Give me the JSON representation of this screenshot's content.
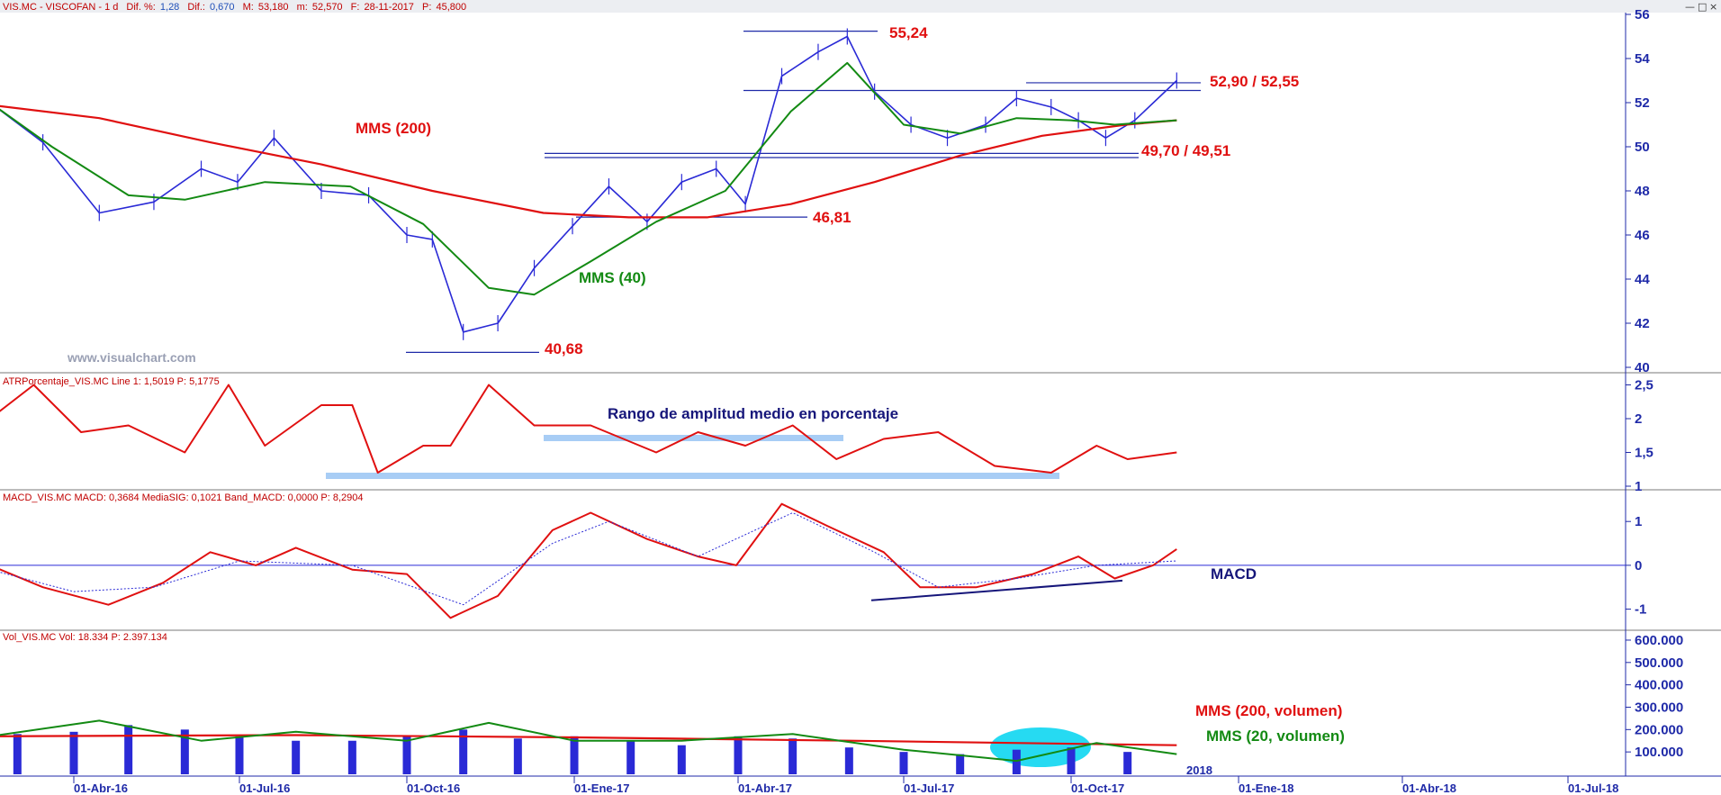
{
  "header": {
    "symbol": "VIS.MC - VISCOFAN - 1 d",
    "dif_label": "Dif.:",
    "dif_value": "0,670",
    "difp_label": "Dif. %:",
    "difp_value": "1,28",
    "max_label": "M:",
    "max_value": "53,180",
    "min_label": "m:",
    "min_value": "52,570",
    "date_label": "F:",
    "date_value": "28-11-2017",
    "price_label": "P:",
    "price_value": "45,800"
  },
  "watermark": "www.visualchart.com",
  "annotations": {
    "high": "55,24",
    "resistance": "52,90 / 52,55",
    "support": "49,70 / 49,51",
    "level_mid": "46,81",
    "low": "40,68",
    "mms200": "MMS (200)",
    "mms40": "MMS (40)",
    "atr_note": "Rango de amplitud medio en porcentaje",
    "macd_note": "MACD",
    "vol_mms200": "MMS (200, volumen)",
    "vol_mms20": "MMS (20, volumen)"
  },
  "atr_header": "ATRPorcentaje_VIS.MC  Line 1: 1,5019  P: 5,1775",
  "macd_header": "MACD_VIS.MC  MACD: 0,3684  MediaSIG: 0,1021  Band_MACD: 0,0000  P: 8,2904",
  "vol_header": "Vol_VIS.MC  Vol: 18.334  P: 2.397.134",
  "year_label": "2018",
  "colors": {
    "price": "#2a2ad6",
    "mms200": "#e01010",
    "mms40": "#138a13",
    "signal": "#2a2ad6",
    "axis": "#1f2aa8",
    "band": "#a8cdf5",
    "highlight": "#00d4f0"
  },
  "chart_data": [
    {
      "type": "line",
      "pane": "price",
      "yticks": [
        "40",
        "42",
        "44",
        "46",
        "48",
        "50",
        "52",
        "54",
        "56"
      ],
      "ylim": [
        40,
        56
      ],
      "xticks": [
        "01-Abr-16",
        "01-Jul-16",
        "01-Oct-16",
        "01-Ene-17",
        "01-Abr-17",
        "01-Jul-17",
        "01-Oct-17",
        "01-Ene-18",
        "01-Abr-18",
        "01-Jul-18"
      ],
      "series": [
        {
          "name": "VIS.MC",
          "x": [
            "2016-02-15",
            "2016-03-15",
            "2016-04-15",
            "2016-05-15",
            "2016-06-10",
            "2016-06-30",
            "2016-07-20",
            "2016-08-15",
            "2016-09-10",
            "2016-10-01",
            "2016-10-15",
            "2016-11-01",
            "2016-11-20",
            "2016-12-10",
            "2016-12-31",
            "2017-01-20",
            "2017-02-10",
            "2017-03-01",
            "2017-03-20",
            "2017-04-05",
            "2017-04-25",
            "2017-05-15",
            "2017-05-31",
            "2017-06-15",
            "2017-07-05",
            "2017-07-25",
            "2017-08-15",
            "2017-09-01",
            "2017-09-20",
            "2017-10-05",
            "2017-10-20",
            "2017-11-05",
            "2017-11-28"
          ],
          "values": [
            52.0,
            50.2,
            47.0,
            47.5,
            49.0,
            48.4,
            50.4,
            48.0,
            47.8,
            46.0,
            45.8,
            41.6,
            42.0,
            44.5,
            46.4,
            48.2,
            46.6,
            48.4,
            49.0,
            47.4,
            53.2,
            54.3,
            55.0,
            52.5,
            51.0,
            50.4,
            51.0,
            52.2,
            51.8,
            51.2,
            50.4,
            51.2,
            53.0
          ]
        },
        {
          "name": "MMS (200)",
          "x": [
            "2016-02-15",
            "2016-04-15",
            "2016-06-15",
            "2016-08-15",
            "2016-10-15",
            "2016-12-15",
            "2017-01-31",
            "2017-03-15",
            "2017-04-30",
            "2017-06-15",
            "2017-08-01",
            "2017-09-15",
            "2017-10-31",
            "2017-11-28"
          ],
          "values": [
            51.9,
            51.3,
            50.2,
            49.2,
            48.0,
            47.0,
            46.8,
            46.8,
            47.4,
            48.4,
            49.6,
            50.5,
            51.0,
            51.2
          ]
        },
        {
          "name": "MMS (40)",
          "x": [
            "2016-02-15",
            "2016-03-20",
            "2016-05-01",
            "2016-06-01",
            "2016-07-15",
            "2016-08-31",
            "2016-10-10",
            "2016-11-15",
            "2016-12-10",
            "2017-01-10",
            "2017-02-15",
            "2017-03-25",
            "2017-04-30",
            "2017-05-31",
            "2017-07-01",
            "2017-08-01",
            "2017-09-01",
            "2017-10-01",
            "2017-10-25",
            "2017-11-28"
          ],
          "values": [
            52.0,
            50.0,
            47.8,
            47.6,
            48.4,
            48.2,
            46.5,
            43.6,
            43.3,
            44.8,
            46.6,
            48.0,
            51.6,
            53.8,
            51.0,
            50.6,
            51.3,
            51.2,
            51.0,
            51.2
          ]
        }
      ]
    },
    {
      "type": "line",
      "pane": "atr",
      "yticks": [
        "1",
        "1,5",
        "2",
        "2,5"
      ],
      "ylim": [
        1,
        2.6
      ],
      "series": [
        {
          "name": "ATRPorcentaje_VIS.MC",
          "x": [
            "2016-02-15",
            "2016-03-10",
            "2016-04-05",
            "2016-05-01",
            "2016-06-01",
            "2016-06-25",
            "2016-07-15",
            "2016-08-15",
            "2016-09-01",
            "2016-09-15",
            "2016-10-10",
            "2016-10-25",
            "2016-11-15",
            "2016-12-10",
            "2017-01-10",
            "2017-02-15",
            "2017-03-10",
            "2017-04-05",
            "2017-05-01",
            "2017-05-25",
            "2017-06-20",
            "2017-07-20",
            "2017-08-20",
            "2017-09-20",
            "2017-10-15",
            "2017-11-01",
            "2017-11-28"
          ],
          "values": [
            2.0,
            2.5,
            1.8,
            1.9,
            1.5,
            2.5,
            1.6,
            2.2,
            2.2,
            1.2,
            1.6,
            1.6,
            2.5,
            1.9,
            1.9,
            1.5,
            1.8,
            1.6,
            1.9,
            1.4,
            1.7,
            1.8,
            1.3,
            1.2,
            1.6,
            1.4,
            1.5
          ]
        }
      ]
    },
    {
      "type": "line",
      "pane": "macd",
      "yticks": [
        "-1",
        "0",
        "1"
      ],
      "ylim": [
        -1.4,
        1.6
      ],
      "series": [
        {
          "name": "MACD",
          "x": [
            "2016-02-15",
            "2016-03-15",
            "2016-04-20",
            "2016-05-20",
            "2016-06-15",
            "2016-07-10",
            "2016-08-01",
            "2016-09-01",
            "2016-10-01",
            "2016-10-25",
            "2016-11-20",
            "2016-12-20",
            "2017-01-10",
            "2017-02-10",
            "2017-03-10",
            "2017-03-31",
            "2017-04-25",
            "2017-05-20",
            "2017-06-20",
            "2017-07-10",
            "2017-08-10",
            "2017-09-10",
            "2017-10-05",
            "2017-10-25",
            "2017-11-15",
            "2017-11-28"
          ],
          "values": [
            0.0,
            -0.5,
            -0.9,
            -0.4,
            0.3,
            0.0,
            0.4,
            -0.1,
            -0.2,
            -1.2,
            -0.7,
            0.8,
            1.2,
            0.6,
            0.2,
            0.0,
            1.4,
            0.9,
            0.3,
            -0.5,
            -0.5,
            -0.2,
            0.2,
            -0.3,
            0.0,
            0.37
          ]
        },
        {
          "name": "MediaSIG",
          "x": [
            "2016-02-15",
            "2016-04-01",
            "2016-05-15",
            "2016-07-01",
            "2016-09-01",
            "2016-11-01",
            "2016-12-20",
            "2017-01-20",
            "2017-03-10",
            "2017-05-01",
            "2017-06-15",
            "2017-07-20",
            "2017-09-01",
            "2017-10-15",
            "2017-11-28"
          ],
          "values": [
            -0.1,
            -0.6,
            -0.5,
            0.1,
            0.0,
            -0.9,
            0.5,
            1.0,
            0.2,
            1.2,
            0.3,
            -0.5,
            -0.3,
            0.0,
            0.1
          ]
        }
      ]
    },
    {
      "type": "bar",
      "pane": "volume",
      "yticks": [
        "100.000",
        "200.000",
        "300.000",
        "400.000",
        "500.000",
        "600.000"
      ],
      "ylim": [
        0,
        620000
      ],
      "series": [
        {
          "name": "Vol_VIS.MC",
          "x": [
            "2016-03-01",
            "2016-04-01",
            "2016-05-01",
            "2016-06-01",
            "2016-07-01",
            "2016-08-01",
            "2016-09-01",
            "2016-10-01",
            "2016-11-01",
            "2016-12-01",
            "2017-01-01",
            "2017-02-01",
            "2017-03-01",
            "2017-04-01",
            "2017-05-01",
            "2017-06-01",
            "2017-07-01",
            "2017-08-01",
            "2017-09-01",
            "2017-10-01",
            "2017-11-01"
          ],
          "values": [
            180000,
            190000,
            220000,
            200000,
            170000,
            150000,
            150000,
            170000,
            200000,
            160000,
            170000,
            150000,
            130000,
            170000,
            160000,
            120000,
            100000,
            90000,
            110000,
            120000,
            100000
          ]
        },
        {
          "name": "MMS (200, volumen)",
          "x": [
            "2016-02-15",
            "2016-08-01",
            "2017-01-01",
            "2017-06-01",
            "2017-11-28"
          ],
          "values": [
            170000,
            175000,
            165000,
            150000,
            130000
          ]
        },
        {
          "name": "MMS (20, volumen)",
          "x": [
            "2016-02-15",
            "2016-04-15",
            "2016-06-10",
            "2016-08-01",
            "2016-10-01",
            "2016-11-15",
            "2017-01-01",
            "2017-03-01",
            "2017-05-01",
            "2017-07-01",
            "2017-09-01",
            "2017-10-15",
            "2017-11-28"
          ],
          "values": [
            170000,
            240000,
            150000,
            190000,
            150000,
            230000,
            150000,
            150000,
            180000,
            110000,
            60000,
            140000,
            90000
          ]
        }
      ]
    }
  ]
}
